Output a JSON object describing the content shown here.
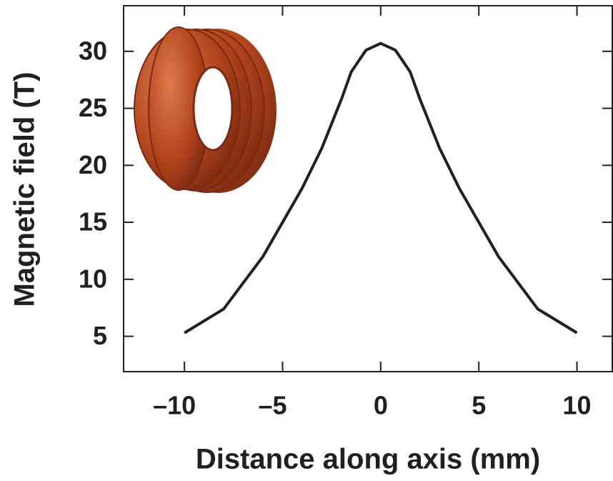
{
  "chart_data": {
    "type": "line",
    "x_label": "Distance along axis (mm)",
    "y_label": "Magnetic field (T)",
    "x": [
      -10,
      -8,
      -6,
      -4,
      -3,
      -2,
      -1.5,
      -0.75,
      0,
      0.75,
      1.5,
      2,
      3,
      4,
      6,
      8,
      10
    ],
    "series": [
      {
        "color": "#231f20",
        "values": [
          5.3,
          7.4,
          12.0,
          18.0,
          21.5,
          25.8,
          28.2,
          30.1,
          30.7,
          30.1,
          28.2,
          25.8,
          21.5,
          18.0,
          12.0,
          7.4,
          5.3
        ]
      }
    ],
    "xlim": [
      -13.1,
      11.8
    ],
    "ylim": [
      1.9,
      34
    ],
    "xticks": [
      {
        "value": -10,
        "label": "–10"
      },
      {
        "value": -5,
        "label": "–5"
      },
      0,
      5,
      10
    ],
    "yticks": [
      5,
      10,
      15,
      20,
      25,
      30
    ]
  }
}
